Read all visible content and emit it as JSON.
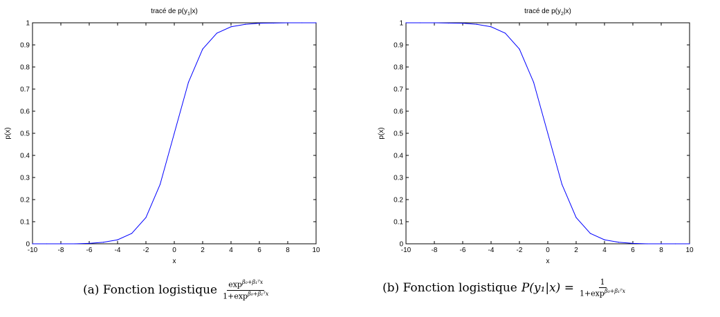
{
  "chart_data": [
    {
      "type": "line",
      "title": "tracé de p(y",
      "title_sub": "1",
      "title_suffix": "|x)",
      "xlabel": "x",
      "ylabel": "p(x)",
      "xlim": [
        -10,
        10
      ],
      "ylim": [
        0,
        1
      ],
      "xticks": [
        "-10",
        "-8",
        "-6",
        "-4",
        "-2",
        "0",
        "2",
        "4",
        "6",
        "8",
        "10"
      ],
      "yticks": [
        "0",
        "0.1",
        "0.2",
        "0.3",
        "0.4",
        "0.5",
        "0.6",
        "0.7",
        "0.8",
        "0.9",
        "1"
      ],
      "grid": false,
      "line_color": "#0000ff",
      "x": [
        -10,
        -9,
        -8,
        -7,
        -6,
        -5,
        -4,
        -3,
        -2,
        -1,
        0,
        1,
        2,
        3,
        4,
        5,
        6,
        7,
        8,
        9,
        10
      ],
      "y": [
        0.0,
        0.0,
        0.0,
        0.0,
        0.002,
        0.007,
        0.018,
        0.047,
        0.119,
        0.269,
        0.5,
        0.731,
        0.881,
        0.953,
        0.982,
        0.993,
        0.998,
        0.999,
        1.0,
        1.0,
        1.0
      ]
    },
    {
      "type": "line",
      "title": "tracé de p(y",
      "title_sub": "2",
      "title_suffix": "|x)",
      "xlabel": "x",
      "ylabel": "p(x)",
      "xlim": [
        -10,
        10
      ],
      "ylim": [
        0,
        1
      ],
      "xticks": [
        "-10",
        "-8",
        "-6",
        "-4",
        "-2",
        "0",
        "2",
        "4",
        "6",
        "8",
        "10"
      ],
      "yticks": [
        "0",
        "0.1",
        "0.2",
        "0.3",
        "0.4",
        "0.5",
        "0.6",
        "0.7",
        "0.8",
        "0.9",
        "1"
      ],
      "grid": false,
      "line_color": "#0000ff",
      "x": [
        -10,
        -9,
        -8,
        -7,
        -6,
        -5,
        -4,
        -3,
        -2,
        -1,
        0,
        1,
        2,
        3,
        4,
        5,
        6,
        7,
        8,
        9,
        10
      ],
      "y": [
        1.0,
        1.0,
        1.0,
        0.999,
        0.998,
        0.993,
        0.982,
        0.953,
        0.881,
        0.731,
        0.5,
        0.269,
        0.119,
        0.047,
        0.018,
        0.007,
        0.002,
        0.0,
        0.0,
        0.0,
        0.0
      ]
    }
  ],
  "captions": [
    {
      "prefix": "(a) Fonction logistique",
      "num_text": "exp",
      "num_sup": "β₀+β₁ᵀx",
      "den_text": "1+exp",
      "den_sup": "β₀+β₁ᵀx"
    },
    {
      "prefix": "(b) Fonction logistique",
      "math": "P(y₁|x) =",
      "num_text": "1",
      "den_text": "1+exp",
      "den_sup": "β₀+β₁ᵀx"
    }
  ]
}
